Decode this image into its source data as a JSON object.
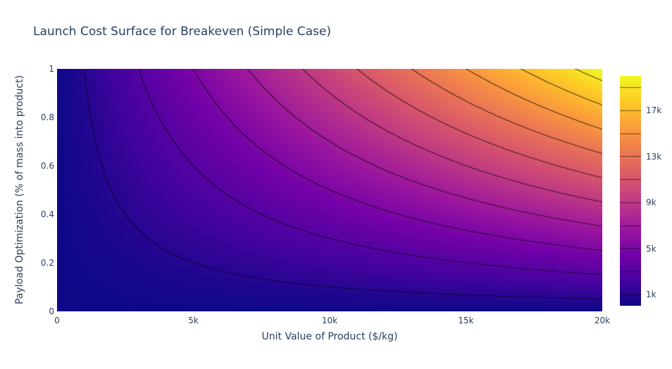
{
  "chart_data": {
    "type": "heatmap",
    "subtype": "contour-heatmap",
    "title": "Launch Cost Surface for Breakeven (Simple Case)",
    "xlabel": "Unit Value of Product ($/kg)",
    "ylabel": "Payload Optimization (% of mass into product)",
    "x_range": [
      0,
      20000
    ],
    "y_range": [
      0,
      1
    ],
    "z_range": [
      0,
      20000
    ],
    "z_formula": "z = x * y (breakeven launch cost, $/kg)",
    "contours": {
      "start": 1000,
      "size": 2000,
      "end": 19000,
      "coloring": "heatmap",
      "line_darken_factor": 0.45
    },
    "grid": false,
    "legend_position": "colorbar-right",
    "colorscale_name": "Plasma",
    "colorscale": [
      [
        0.0,
        "#0d0887"
      ],
      [
        0.111111,
        "#46039f"
      ],
      [
        0.222222,
        "#7201a8"
      ],
      [
        0.333333,
        "#9c179e"
      ],
      [
        0.444444,
        "#bd3786"
      ],
      [
        0.555556,
        "#d8576b"
      ],
      [
        0.666667,
        "#ed7953"
      ],
      [
        0.777778,
        "#fb9f3a"
      ],
      [
        0.888889,
        "#fdca26"
      ],
      [
        1.0,
        "#f0f921"
      ]
    ],
    "x_tick_labels": [
      "0",
      "5k",
      "10k",
      "15k",
      "20k"
    ],
    "x_tick_values": [
      0,
      5000,
      10000,
      15000,
      20000
    ],
    "y_tick_labels": [
      "0",
      "0.2",
      "0.4",
      "0.6",
      "0.8",
      "1"
    ],
    "y_tick_values": [
      0,
      0.2,
      0.4,
      0.6,
      0.8,
      1
    ],
    "colorbar": {
      "tick_labels": [
        "1k",
        "5k",
        "9k",
        "13k",
        "17k"
      ],
      "tick_values": [
        1000,
        5000,
        9000,
        13000,
        17000
      ]
    }
  },
  "style": {
    "text_color": "#2a3f5f",
    "background": "#ffffff",
    "surface_low_color": "#0d0887",
    "surface_high_color": "#f0f921"
  }
}
